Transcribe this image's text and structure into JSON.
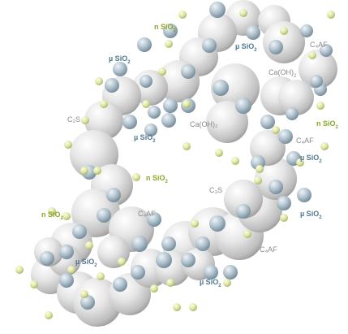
{
  "labels": {
    "l01": "n SiO",
    "l02": "µ SiO",
    "l03": "µ SiO",
    "l04": "C₄AF",
    "l05": "Ca(OH)",
    "l06": "C₂S",
    "l07": "Ca(OH)₂",
    "l08": "µ SiO",
    "l09": "C₄AF",
    "l10": "n SiO",
    "l11": "µ SiO",
    "l12": "n SiO",
    "l13": "C₃S",
    "l14": "n SiO",
    "l15": "C₄AF",
    "l16": "µ SiO",
    "l17": "µ SiO",
    "l18": "C₄AF",
    "l19": "µ SiO"
  },
  "sub_2": "2",
  "colors": {
    "cement_particle": "#d8d8d8",
    "micro_silica": "#a9bcc8",
    "nano_silica": "#dfe7a5",
    "label_gray": "#8a8a8a",
    "label_blue": "#4f7891",
    "label_green": "#8aa72a"
  }
}
